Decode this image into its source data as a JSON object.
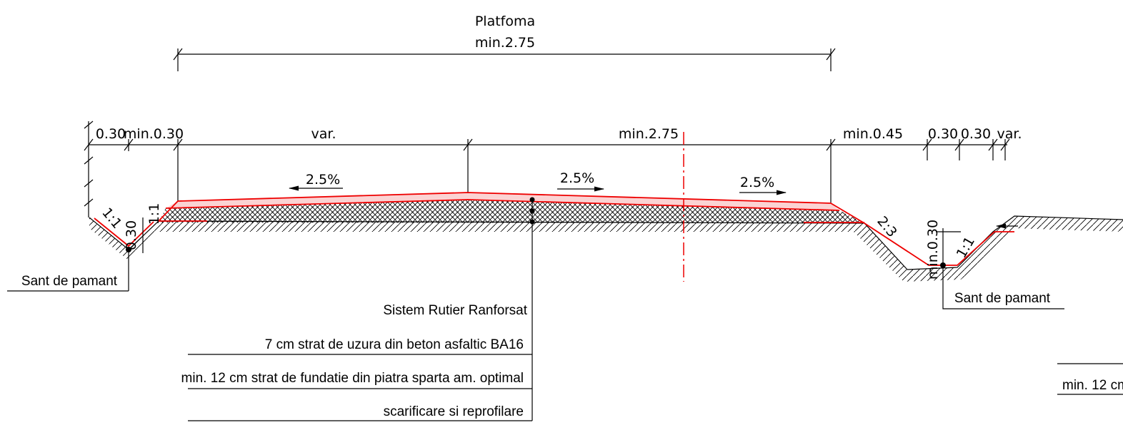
{
  "header": {
    "title": "Platfoma",
    "width": "min.2.75"
  },
  "dimensions": [
    "0.30",
    "min.0.30",
    "var.",
    "min.2.75",
    "min.0.45",
    "0.30",
    "0.30",
    "var."
  ],
  "slopes": [
    "2.5%",
    "2.5%",
    "2.5%"
  ],
  "ditch_left": {
    "slope_inner": "1:1",
    "slope_outer": "1:1",
    "depth": "0.30",
    "label": "Sant de pamant"
  },
  "ditch_right": {
    "slope_embankment": "2:3",
    "depth": "min.0.30",
    "slope": "1:1",
    "label": "Sant de pamant"
  },
  "structure": {
    "title": "Sistem Rutier Ranforsat",
    "layers": [
      "7 cm strat de uzura din beton asfaltic BA16",
      "min. 12 cm strat de fundatie din piatra sparta am. optimal",
      "scarificare si reprofilare"
    ]
  },
  "cut_label": "min. 12 cm"
}
